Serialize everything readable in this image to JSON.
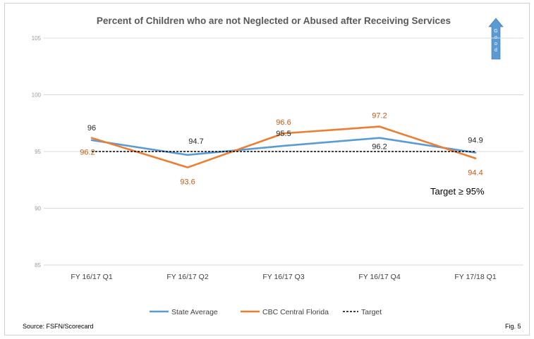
{
  "chart_data": {
    "type": "line",
    "title": "Percent of Children who are not Neglected or Abused after Receiving Services",
    "categories": [
      "FY 16/17 Q1",
      "FY 16/17 Q2",
      "FY 16/17 Q3",
      "FY 16/17 Q4",
      "FY 17/18 Q1"
    ],
    "ylim": [
      85,
      105
    ],
    "yticks": [
      "85",
      "90",
      "95",
      "100",
      "105"
    ],
    "grid": true,
    "legend_position": "bottom",
    "series": [
      {
        "name": "State Average",
        "values": [
          96,
          94.7,
          95.5,
          96.2,
          94.9
        ],
        "labels": [
          "96",
          "94.7",
          "95.5",
          "96.2",
          "94.9"
        ],
        "color": "#5b9bd5"
      },
      {
        "name": "CBC Central Florida",
        "values": [
          96.2,
          93.6,
          96.6,
          97.2,
          94.4
        ],
        "labels": [
          "96.2",
          "93.6",
          "96.6",
          "97.2",
          "94.4"
        ],
        "color": "#ed7d31"
      },
      {
        "name": "Target",
        "values": [
          95,
          95,
          95,
          95,
          95
        ],
        "color": "#000000",
        "dash": true
      }
    ],
    "annotation": "Target  ≥ 95%",
    "good_arrow": {
      "letters": [
        "G",
        "o",
        "o",
        "d"
      ],
      "color": "#5b9bd5"
    }
  },
  "footer": {
    "source": "Source: FSFN/Scorecard",
    "fig": "Fig. 5"
  }
}
